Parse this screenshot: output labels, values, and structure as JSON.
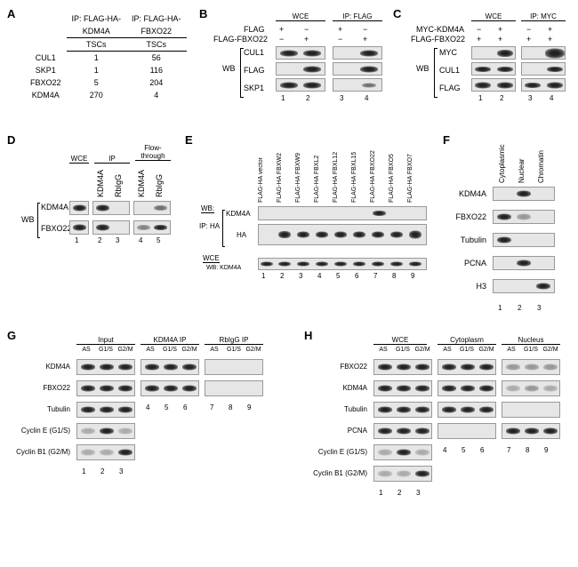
{
  "colors": {
    "bg": "#ffffff",
    "text": "#000000",
    "blot_bg": "#e6e6e6",
    "blot_border": "#999999",
    "band_dark": "#333333"
  },
  "panelA": {
    "label": "A",
    "col1_header_top": "IP: FLAG-HA-",
    "col1_header_bot": "KDM4A",
    "col2_header_top": "IP: FLAG-HA-",
    "col2_header_bot": "FBXO22",
    "subhead": "TSCs",
    "rows": [
      "CUL1",
      "SKP1",
      "FBXO22",
      "KDM4A"
    ],
    "vals": [
      [
        "1",
        "56"
      ],
      [
        "1",
        "116"
      ],
      [
        "5",
        "204"
      ],
      [
        "270",
        "4"
      ]
    ]
  },
  "panelB": {
    "label": "B",
    "wce": "WCE",
    "ipflag": "IP: FLAG",
    "flag_row": "FLAG",
    "ff_row": "FLAG-FBXO22",
    "pm": [
      "+",
      "−",
      "+",
      "−",
      "−",
      "+",
      "−",
      "+"
    ],
    "wb": "WB",
    "targets": [
      "CUL1",
      "FLAG",
      "SKP1"
    ],
    "lanes": [
      "1",
      "2",
      "3",
      "4"
    ]
  },
  "panelC": {
    "label": "C",
    "wce": "WCE",
    "ipmyc": "IP: MYC",
    "mk_row": "MYC-KDM4A",
    "ff_row": "FLAG-FBXO22",
    "pm_mk": [
      "−",
      "+",
      "−",
      "+"
    ],
    "pm_ff": [
      "+",
      "+",
      "+",
      "+"
    ],
    "wb": "WB",
    "targets": [
      "MYC",
      "CUL1",
      "FLAG"
    ],
    "lanes": [
      "1",
      "2",
      "3",
      "4"
    ]
  },
  "panelD": {
    "label": "D",
    "wce": "WCE",
    "ip": "IP",
    "flow": "Flow-\nthrough",
    "cols": [
      "KDM4A",
      "RbIgG",
      "KDM4A",
      "RbIgG"
    ],
    "wb": "WB",
    "targets": [
      "KDM4A",
      "FBXO22"
    ],
    "lanes": [
      "1",
      "2",
      "3",
      "4",
      "5"
    ]
  },
  "panelE": {
    "label": "E",
    "wb": "WB:",
    "ipha": "IP: HA",
    "wce_k": "WCE",
    "wbk": "WB: KDM4A",
    "cols": [
      "FLAG-HA vector",
      "FLAG-HA FBXW2",
      "FLAG-HA FBXW9",
      "FLAG-HA FBXL2",
      "FLAG-HA FBXL12",
      "FLAG-HA FBXL15",
      "FLAG-HA FBXO22",
      "FLAG-HA FBXO5",
      "FLAG-HA FBXO7"
    ],
    "targets": [
      "KDM4A",
      "HA"
    ],
    "lanes": [
      "1",
      "2",
      "3",
      "4",
      "5",
      "6",
      "7",
      "8",
      "9"
    ]
  },
  "panelF": {
    "label": "F",
    "cols": [
      "Cytoplasmic",
      "Nuclear",
      "Chromatin"
    ],
    "targets": [
      "KDM4A",
      "FBXO22",
      "Tubulin",
      "PCNA",
      "H3"
    ],
    "lanes": [
      "1",
      "2",
      "3"
    ]
  },
  "panelG": {
    "label": "G",
    "groups": [
      "Input",
      "KDM4A IP",
      "RbIgG IP"
    ],
    "phases": [
      "AS",
      "G1/S",
      "G2/M"
    ],
    "targets": [
      "KDM4A",
      "FBXO22",
      "Tubulin",
      "Cyclin E (G1/S)",
      "Cyclin B1 (G2/M)"
    ],
    "lanes": [
      "1",
      "2",
      "3",
      "4",
      "5",
      "6",
      "7",
      "8",
      "9"
    ]
  },
  "panelH": {
    "label": "H",
    "groups": [
      "WCE",
      "Cytoplasm",
      "Nucleus"
    ],
    "phases": [
      "AS",
      "G1/S",
      "G2/M"
    ],
    "targets": [
      "FBXO22",
      "KDM4A",
      "Tubulin",
      "PCNA",
      "Cyclin E (G1/S)",
      "Cyclin B1 (G2/M)"
    ],
    "lanes_left": [
      "1",
      "2",
      "3"
    ],
    "lanes_right": [
      "4",
      "5",
      "6",
      "7",
      "8",
      "9"
    ]
  }
}
